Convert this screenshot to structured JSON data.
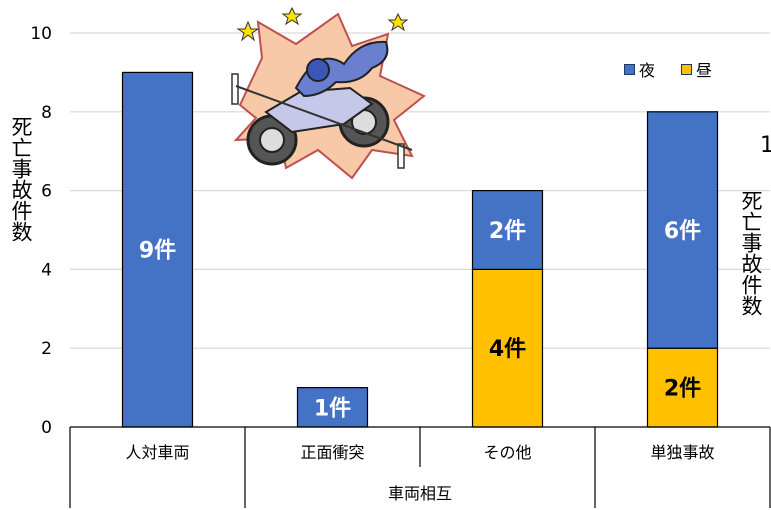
{
  "chart_data": {
    "type": "bar",
    "stacked": true,
    "categories": [
      "人対車両",
      "正面衝突",
      "その他",
      "単独事故"
    ],
    "group_labels": [
      {
        "label": "",
        "categories": [
          "人対車両"
        ]
      },
      {
        "label": "車両相互",
        "categories": [
          "正面衝突",
          "その他"
        ]
      },
      {
        "label": "",
        "categories": [
          "単独事故"
        ]
      }
    ],
    "series": [
      {
        "name": "昼",
        "color": "#ffc000",
        "values": [
          0,
          0,
          4,
          2
        ],
        "labels": [
          "",
          "",
          "4件",
          "2件"
        ]
      },
      {
        "name": "夜",
        "color": "#4472c4",
        "values": [
          9,
          1,
          2,
          6
        ],
        "labels": [
          "9件",
          "1件",
          "2件",
          "6件"
        ]
      }
    ],
    "ylim": [
      0,
      10
    ],
    "yticks": [
      "0",
      "2",
      "4",
      "6",
      "8",
      "10"
    ],
    "ylabel": "死亡事故件数",
    "ylabel_right": "死亡事故件数",
    "stray_text": "1",
    "grid": true,
    "legend_position": "top-right",
    "legend": [
      {
        "name": "夜",
        "color": "#4472c4"
      },
      {
        "name": "昼",
        "color": "#ffc000"
      }
    ]
  }
}
